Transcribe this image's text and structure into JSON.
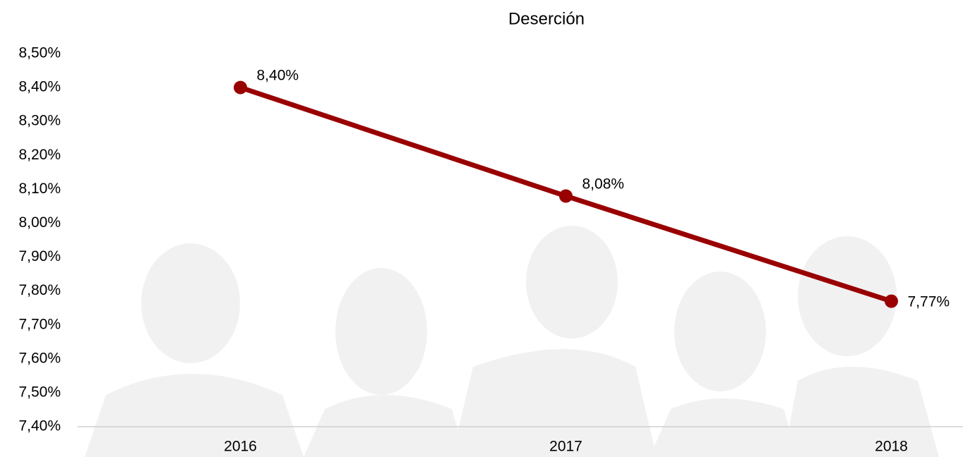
{
  "chart_data": {
    "type": "line",
    "title": "Deserción",
    "categories": [
      "2016",
      "2017",
      "2018"
    ],
    "values": [
      8.4,
      8.08,
      7.77
    ],
    "value_labels": [
      "8,40%",
      "8,08%",
      "7,77%"
    ],
    "color": "#990000",
    "ylim": [
      7.4,
      8.5
    ],
    "yticks": [
      {
        "value": 8.5,
        "label": "8,50%"
      },
      {
        "value": 8.4,
        "label": "8,40%"
      },
      {
        "value": 8.3,
        "label": "8,30%"
      },
      {
        "value": 8.2,
        "label": "8,20%"
      },
      {
        "value": 8.1,
        "label": "8,10%"
      },
      {
        "value": 8.0,
        "label": "8,00%"
      },
      {
        "value": 7.9,
        "label": "7,90%"
      },
      {
        "value": 7.8,
        "label": "7,80%"
      },
      {
        "value": 7.7,
        "label": "7,70%"
      },
      {
        "value": 7.6,
        "label": "7,60%"
      },
      {
        "value": 7.5,
        "label": "7,50%"
      },
      {
        "value": 7.4,
        "label": "7,40%"
      }
    ],
    "grid": false
  }
}
